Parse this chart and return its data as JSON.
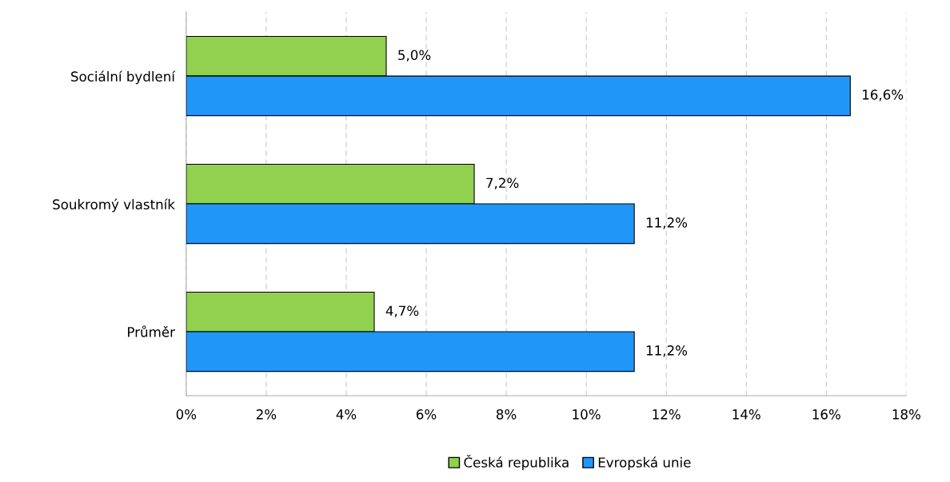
{
  "chart_data": {
    "type": "bar",
    "orientation": "horizontal",
    "categories": [
      "Sociální bydlení",
      "Soukromý vlastník",
      "Průměr"
    ],
    "series": [
      {
        "name": "Česká republika",
        "color": "#92d050",
        "values": [
          5.0,
          7.2,
          4.7
        ],
        "value_labels": [
          "5,0%",
          "7,2%",
          "4,7%"
        ]
      },
      {
        "name": "Evropská unie",
        "color": "#2196f9",
        "values": [
          16.6,
          11.2,
          11.2
        ],
        "value_labels": [
          "16,6%",
          "11,2%",
          "11,2%"
        ]
      }
    ],
    "xlim": [
      0,
      18
    ],
    "xticks": [
      {
        "value": 0,
        "label": "0%"
      },
      {
        "value": 2,
        "label": "2%"
      },
      {
        "value": 4,
        "label": "4%"
      },
      {
        "value": 6,
        "label": "6%"
      },
      {
        "value": 8,
        "label": "8%"
      },
      {
        "value": 10,
        "label": "10%"
      },
      {
        "value": 12,
        "label": "12%"
      },
      {
        "value": 14,
        "label": "14%"
      },
      {
        "value": 16,
        "label": "16%"
      },
      {
        "value": 18,
        "label": "18%"
      }
    ],
    "grid": "x",
    "legend": "bottom"
  }
}
